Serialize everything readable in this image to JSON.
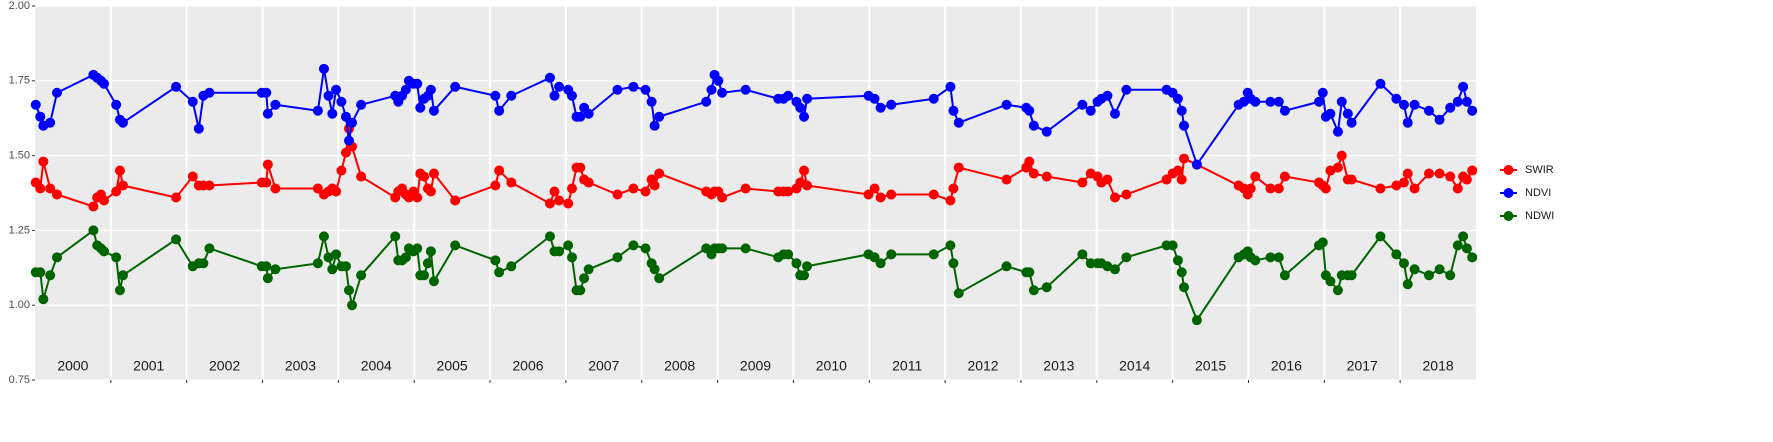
{
  "chart_data": {
    "type": "line",
    "x": [
      2000.01,
      2000.07,
      2000.11,
      2000.2,
      2000.29,
      2000.77,
      2000.82,
      2000.87,
      2000.91,
      2001.07,
      2001.12,
      2001.16,
      2001.86,
      2002.08,
      2002.16,
      2002.22,
      2002.3,
      2002.99,
      2003.05,
      2003.07,
      2003.17,
      2003.73,
      2003.81,
      2003.87,
      2003.92,
      2003.97,
      2004.04,
      2004.1,
      2004.14,
      2004.18,
      2004.3,
      2004.75,
      2004.79,
      2004.84,
      2004.89,
      2004.93,
      2004.99,
      2005.04,
      2005.08,
      2005.13,
      2005.18,
      2005.22,
      2005.26,
      2005.54,
      2006.07,
      2006.12,
      2006.28,
      2006.79,
      2006.85,
      2006.91,
      2007.03,
      2007.08,
      2007.14,
      2007.19,
      2007.24,
      2007.3,
      2007.68,
      2007.89,
      2008.05,
      2008.13,
      2008.17,
      2008.23,
      2008.85,
      2008.92,
      2008.96,
      2009.01,
      2009.06,
      2009.37,
      2009.8,
      2009.87,
      2009.93,
      2010.04,
      2010.09,
      2010.14,
      2010.18,
      2010.99,
      2011.07,
      2011.15,
      2011.29,
      2011.85,
      2012.07,
      2012.11,
      2012.18,
      2012.81,
      2013.07,
      2013.11,
      2013.17,
      2013.34,
      2013.81,
      2013.92,
      2014.01,
      2014.06,
      2014.14,
      2014.24,
      2014.39,
      2014.92,
      2015.0,
      2015.07,
      2015.12,
      2015.15,
      2015.32,
      2015.87,
      2015.94,
      2015.99,
      2016.03,
      2016.09,
      2016.29,
      2016.4,
      2016.48,
      2016.93,
      2016.98,
      2017.02,
      2017.08,
      2017.18,
      2017.23,
      2017.31,
      2017.36,
      2017.74,
      2017.95,
      2018.05,
      2018.1,
      2018.19,
      2018.38,
      2018.52,
      2018.66,
      2018.76,
      2018.83,
      2018.88,
      2018.95
    ],
    "series": [
      {
        "name": "SWIR",
        "color": "#ff0000",
        "values": [
          1.41,
          1.39,
          1.48,
          1.39,
          1.37,
          1.33,
          1.36,
          1.37,
          1.35,
          1.38,
          1.45,
          1.4,
          1.36,
          1.43,
          1.4,
          1.4,
          1.4,
          1.41,
          1.41,
          1.47,
          1.39,
          1.39,
          1.37,
          1.38,
          1.39,
          1.38,
          1.45,
          1.51,
          1.59,
          1.53,
          1.43,
          1.36,
          1.38,
          1.39,
          1.37,
          1.36,
          1.38,
          1.36,
          1.44,
          1.43,
          1.39,
          1.38,
          1.44,
          1.35,
          1.4,
          1.45,
          1.41,
          1.34,
          1.38,
          1.35,
          1.34,
          1.39,
          1.46,
          1.46,
          1.42,
          1.41,
          1.37,
          1.39,
          1.38,
          1.42,
          1.4,
          1.44,
          1.38,
          1.37,
          1.38,
          1.38,
          1.36,
          1.39,
          1.38,
          1.38,
          1.38,
          1.39,
          1.41,
          1.45,
          1.4,
          1.37,
          1.39,
          1.36,
          1.37,
          1.37,
          1.35,
          1.39,
          1.46,
          1.42,
          1.46,
          1.48,
          1.44,
          1.43,
          1.41,
          1.44,
          1.43,
          1.41,
          1.42,
          1.36,
          1.37,
          1.42,
          1.44,
          1.45,
          1.42,
          1.49,
          1.47,
          1.4,
          1.39,
          1.37,
          1.39,
          1.43,
          1.39,
          1.39,
          1.43,
          1.41,
          1.4,
          1.39,
          1.45,
          1.46,
          1.5,
          1.42,
          1.42,
          1.39,
          1.4,
          1.41,
          1.44,
          1.39,
          1.44,
          1.44,
          1.43,
          1.39,
          1.43,
          1.42,
          1.45
        ]
      },
      {
        "name": "NDVI",
        "color": "#0000ff",
        "values": [
          1.67,
          1.63,
          1.6,
          1.61,
          1.71,
          1.77,
          1.76,
          1.75,
          1.74,
          1.67,
          1.62,
          1.61,
          1.73,
          1.68,
          1.59,
          1.7,
          1.71,
          1.71,
          1.71,
          1.64,
          1.67,
          1.65,
          1.79,
          1.7,
          1.64,
          1.72,
          1.68,
          1.63,
          1.55,
          1.61,
          1.67,
          1.7,
          1.68,
          1.7,
          1.72,
          1.75,
          1.74,
          1.74,
          1.66,
          1.69,
          1.7,
          1.72,
          1.65,
          1.73,
          1.7,
          1.65,
          1.7,
          1.76,
          1.7,
          1.73,
          1.72,
          1.7,
          1.63,
          1.63,
          1.66,
          1.64,
          1.72,
          1.73,
          1.72,
          1.68,
          1.6,
          1.63,
          1.68,
          1.72,
          1.77,
          1.75,
          1.71,
          1.72,
          1.69,
          1.69,
          1.7,
          1.68,
          1.66,
          1.63,
          1.69,
          1.7,
          1.69,
          1.66,
          1.67,
          1.69,
          1.73,
          1.65,
          1.61,
          1.67,
          1.66,
          1.65,
          1.6,
          1.58,
          1.67,
          1.65,
          1.68,
          1.69,
          1.7,
          1.64,
          1.72,
          1.72,
          1.71,
          1.69,
          1.65,
          1.6,
          1.47,
          1.67,
          1.68,
          1.71,
          1.69,
          1.68,
          1.68,
          1.68,
          1.65,
          1.68,
          1.71,
          1.63,
          1.64,
          1.58,
          1.68,
          1.64,
          1.61,
          1.74,
          1.69,
          1.67,
          1.61,
          1.67,
          1.65,
          1.62,
          1.66,
          1.68,
          1.73,
          1.68,
          1.65
        ]
      },
      {
        "name": "NDWI",
        "color": "#006400",
        "values": [
          1.11,
          1.11,
          1.02,
          1.1,
          1.16,
          1.25,
          1.2,
          1.19,
          1.18,
          1.16,
          1.05,
          1.1,
          1.22,
          1.13,
          1.14,
          1.14,
          1.19,
          1.13,
          1.13,
          1.09,
          1.12,
          1.14,
          1.23,
          1.16,
          1.12,
          1.17,
          1.13,
          1.13,
          1.05,
          1.0,
          1.1,
          1.23,
          1.15,
          1.15,
          1.16,
          1.19,
          1.18,
          1.19,
          1.1,
          1.1,
          1.14,
          1.18,
          1.08,
          1.2,
          1.15,
          1.11,
          1.13,
          1.23,
          1.18,
          1.18,
          1.2,
          1.16,
          1.05,
          1.05,
          1.09,
          1.12,
          1.16,
          1.2,
          1.19,
          1.14,
          1.12,
          1.09,
          1.19,
          1.17,
          1.19,
          1.19,
          1.19,
          1.19,
          1.16,
          1.17,
          1.17,
          1.14,
          1.1,
          1.1,
          1.13,
          1.17,
          1.16,
          1.14,
          1.17,
          1.17,
          1.2,
          1.14,
          1.04,
          1.13,
          1.11,
          1.11,
          1.05,
          1.06,
          1.17,
          1.14,
          1.14,
          1.14,
          1.13,
          1.12,
          1.16,
          1.2,
          1.2,
          1.15,
          1.11,
          1.06,
          0.95,
          1.16,
          1.17,
          1.18,
          1.16,
          1.15,
          1.16,
          1.16,
          1.1,
          1.2,
          1.21,
          1.1,
          1.08,
          1.05,
          1.1,
          1.1,
          1.1,
          1.23,
          1.17,
          1.14,
          1.07,
          1.12,
          1.1,
          1.12,
          1.1,
          1.2,
          1.23,
          1.19,
          1.16
        ]
      }
    ],
    "xlim": [
      2000,
      2019
    ],
    "xticks": [
      2001,
      2002,
      2003,
      2004,
      2005,
      2006,
      2007,
      2008,
      2009,
      2010,
      2011,
      2012,
      2013,
      2014,
      2015,
      2016,
      2017,
      2018
    ],
    "ylim": [
      0.75,
      2.0
    ],
    "yticks": [
      {
        "value": 0.75,
        "label": "0.75"
      },
      {
        "value": 1,
        "label": "1.00"
      },
      {
        "value": 1.25,
        "label": "1.25"
      },
      {
        "value": 1.5,
        "label": "1.50"
      },
      {
        "value": 1.75,
        "label": "1.75"
      },
      {
        "value": 2,
        "label": "2.00"
      }
    ],
    "annotations": [
      {
        "text": "2000",
        "x": 2000.5
      },
      {
        "text": "2001",
        "x": 2001.5
      },
      {
        "text": "2002",
        "x": 2002.5
      },
      {
        "text": "2003",
        "x": 2003.5
      },
      {
        "text": "2004",
        "x": 2004.5
      },
      {
        "text": "2005",
        "x": 2005.5
      },
      {
        "text": "2006",
        "x": 2006.5
      },
      {
        "text": "2007",
        "x": 2007.5
      },
      {
        "text": "2008",
        "x": 2008.5
      },
      {
        "text": "2009",
        "x": 2009.5
      },
      {
        "text": "2010",
        "x": 2010.5
      },
      {
        "text": "2011",
        "x": 2011.5
      },
      {
        "text": "2012",
        "x": 2012.5
      },
      {
        "text": "2013",
        "x": 2013.5
      },
      {
        "text": "2014",
        "x": 2014.5
      },
      {
        "text": "2015",
        "x": 2015.5
      },
      {
        "text": "2016",
        "x": 2016.5
      },
      {
        "text": "2017",
        "x": 2017.5
      },
      {
        "text": "2018",
        "x": 2018.5
      }
    ],
    "grid": true,
    "legend": "right"
  }
}
